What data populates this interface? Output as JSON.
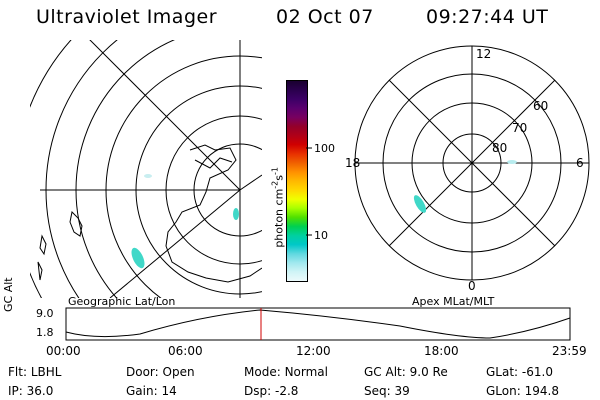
{
  "header": {
    "instrument": "Ultraviolet Imager",
    "date": "02 Oct 07",
    "time": "09:27:44 UT"
  },
  "colorbar": {
    "label": "photon cm-2s-1",
    "ticks": [
      "100",
      "10"
    ],
    "colors": [
      "#1a0030",
      "#2a004d",
      "#3c0066",
      "#5a006e",
      "#780060",
      "#94002a",
      "#b00018",
      "#d00000",
      "#e83000",
      "#f06000",
      "#ff9000",
      "#ffb800",
      "#ffd800",
      "#f0ff00",
      "#a8ff00",
      "#50e000",
      "#00d050",
      "#00d0a0",
      "#00c8c8",
      "#60d8e0",
      "#a0e8ee",
      "#d0f4f6",
      "#ecfafb"
    ]
  },
  "maps": {
    "left_title": "Geographic Lat/Lon",
    "right_title": "Apex MLat/MLT",
    "polar_labels": {
      "top": "12",
      "left": "18",
      "right": "6",
      "bottom": "0"
    },
    "lat_labels": [
      "60",
      "70",
      "80"
    ],
    "aurora_color": "#40d8c8"
  },
  "altitude_plot": {
    "ylabel": "GC Alt",
    "yticks": [
      "9.0",
      "1.8"
    ],
    "xticks": [
      "00:00",
      "06:00",
      "12:00",
      "18:00",
      "23:59"
    ],
    "marker_color": "#d00000"
  },
  "status": [
    {
      "label": "Flt:",
      "value": "LBHL"
    },
    {
      "label": "Door:",
      "value": "Open"
    },
    {
      "label": "Mode:",
      "value": "Normal"
    },
    {
      "label": "GC Alt:",
      "value": "9.0 Re"
    },
    {
      "label": "GLat:",
      "value": "-61.0"
    },
    {
      "label": "IP:",
      "value": "36.0"
    },
    {
      "label": "Gain:",
      "value": "14"
    },
    {
      "label": "Dsp:",
      "value": "-2.8"
    },
    {
      "label": "Seq:",
      "value": "39"
    },
    {
      "label": "GLon:",
      "value": "194.8"
    }
  ]
}
